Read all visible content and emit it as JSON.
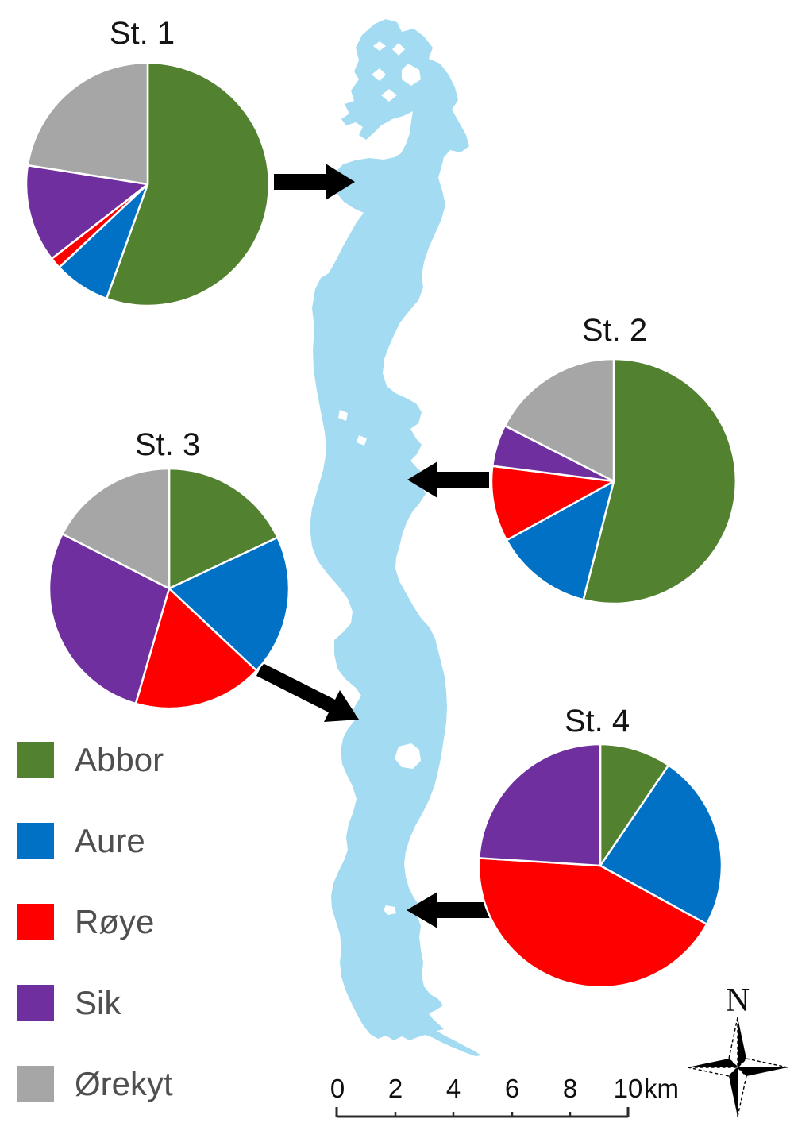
{
  "figure": {
    "type": "lake-map-with-station-pie-charts",
    "background": "#ffffff"
  },
  "legend": {
    "items": [
      {
        "label": "Abbor",
        "color": "#52812f"
      },
      {
        "label": "Aure",
        "color": "#0071c5"
      },
      {
        "label": "Røye",
        "color": "#ff0000"
      },
      {
        "label": "Sik",
        "color": "#6f2f9f"
      },
      {
        "label": "Ørekyt",
        "color": "#a6a6a6"
      }
    ]
  },
  "chart_data": [
    {
      "type": "pie",
      "title": "St. 1",
      "categories": [
        "Abbor",
        "Aure",
        "Røye",
        "Sik",
        "Ørekyt"
      ],
      "values": [
        55.5,
        7.5,
        1.5,
        13,
        22.5
      ],
      "colors": [
        "#52812f",
        "#0071c5",
        "#ff0000",
        "#6f2f9f",
        "#a6a6a6"
      ],
      "start_angle": "top",
      "direction": "clockwise"
    },
    {
      "type": "pie",
      "title": "St. 2",
      "categories": [
        "Abbor",
        "Aure",
        "Røye",
        "Sik",
        "Ørekyt"
      ],
      "values": [
        54,
        13,
        10,
        5.5,
        17.5
      ],
      "colors": [
        "#52812f",
        "#0071c5",
        "#ff0000",
        "#6f2f9f",
        "#a6a6a6"
      ],
      "start_angle": "top",
      "direction": "clockwise"
    },
    {
      "type": "pie",
      "title": "St. 3",
      "categories": [
        "Abbor",
        "Aure",
        "Røye",
        "Sik",
        "Ørekyt"
      ],
      "values": [
        18,
        19,
        17.5,
        28,
        17.5
      ],
      "colors": [
        "#52812f",
        "#0071c5",
        "#ff0000",
        "#6f2f9f",
        "#a6a6a6"
      ],
      "start_angle": "top",
      "direction": "clockwise"
    },
    {
      "type": "pie",
      "title": "St. 4",
      "categories": [
        "Abbor",
        "Aure",
        "Røye",
        "Sik",
        "Ørekyt"
      ],
      "values": [
        9.5,
        23.5,
        43,
        24,
        0
      ],
      "colors": [
        "#52812f",
        "#0071c5",
        "#ff0000",
        "#6f2f9f",
        "#a6a6a6"
      ],
      "start_angle": "top",
      "direction": "clockwise"
    }
  ],
  "map": {
    "lake_color": "#a3dcf2",
    "north_label": "N"
  },
  "scale_bar": {
    "tick_labels": [
      "0",
      "2",
      "4",
      "6",
      "8",
      "10"
    ],
    "unit": "km"
  }
}
